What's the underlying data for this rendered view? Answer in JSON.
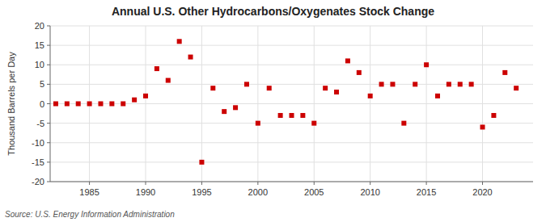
{
  "chart_data": {
    "type": "scatter",
    "title": "Annual U.S. Other Hydrocarbons/Oxygenates Stock Change",
    "y_label": "Thousand Barrels per Day",
    "annotations": [
      "Source: U.S. Energy Information Administration"
    ],
    "x": [
      1982,
      1983,
      1984,
      1985,
      1986,
      1987,
      1988,
      1989,
      1990,
      1991,
      1992,
      1993,
      1994,
      1995,
      1996,
      1997,
      1998,
      1999,
      2000,
      2001,
      2002,
      2003,
      2004,
      2005,
      2006,
      2007,
      2008,
      2009,
      2010,
      2011,
      2012,
      2013,
      2014,
      2015,
      2016,
      2017,
      2018,
      2019,
      2020,
      2021,
      2022,
      2023
    ],
    "values": [
      0,
      0,
      0,
      0,
      0,
      0,
      0,
      1,
      2,
      9,
      6,
      16,
      12,
      -15,
      4,
      -2,
      -1,
      5,
      -5,
      4,
      -3,
      -3,
      -3,
      -5,
      4,
      3,
      11,
      8,
      2,
      5,
      5,
      -5,
      5,
      10,
      2,
      5,
      5,
      5,
      -6,
      -3,
      8,
      4
    ],
    "color": "#cc0000",
    "marker": "square",
    "xlim": [
      1981.5,
      2024.5
    ],
    "ylim": [
      -20,
      20
    ],
    "xticks": [
      1985,
      1990,
      1995,
      2000,
      2005,
      2010,
      2015,
      2020
    ],
    "yticks": [
      -20,
      -15,
      -10,
      -5,
      0,
      5,
      10,
      15,
      20
    ],
    "grid": true
  }
}
